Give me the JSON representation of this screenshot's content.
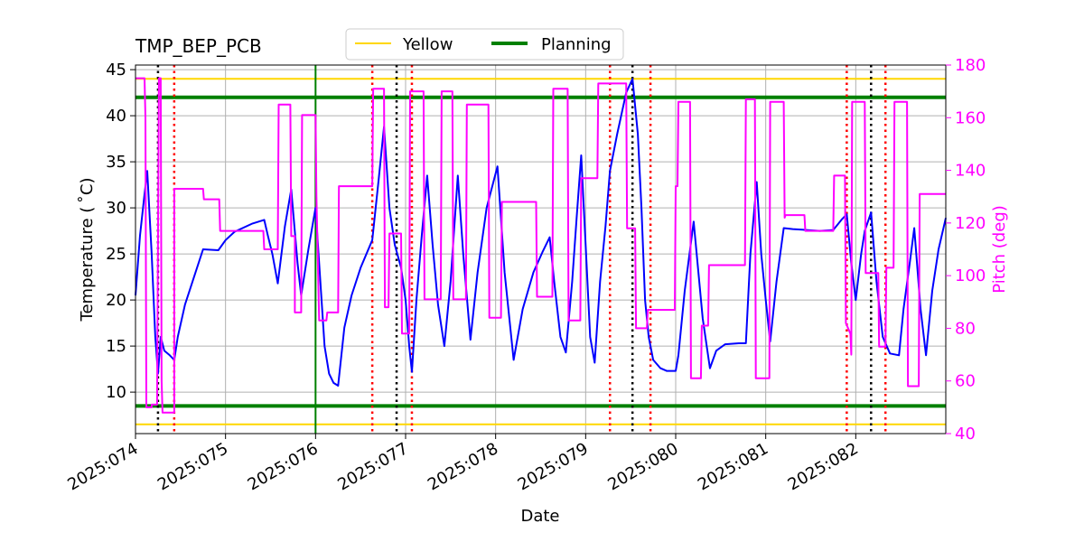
{
  "chart_data": {
    "type": "line",
    "title": "TMP_BEP_PCB",
    "xlabel": "Date",
    "ylabel": "Temperature ($^\\circ$C)",
    "ylabel_display": "Temperature ( ˚C)",
    "y2label": "Pitch (deg)",
    "xlim": [
      74.0,
      83.0
    ],
    "ylim": [
      5.5,
      45.5
    ],
    "y2lim": [
      40,
      180
    ],
    "grid": true,
    "legend_placement": "top-center",
    "x_ticks": [
      {
        "value": 74,
        "label": "2025:074"
      },
      {
        "value": 75,
        "label": "2025:075"
      },
      {
        "value": 76,
        "label": "2025:076"
      },
      {
        "value": 77,
        "label": "2025:077"
      },
      {
        "value": 78,
        "label": "2025:078"
      },
      {
        "value": 79,
        "label": "2025:079"
      },
      {
        "value": 80,
        "label": "2025:080"
      },
      {
        "value": 81,
        "label": "2025:081"
      },
      {
        "value": 82,
        "label": "2025:082"
      }
    ],
    "y_ticks": [
      10,
      15,
      20,
      25,
      30,
      35,
      40,
      45
    ],
    "y2_ticks": [
      40,
      60,
      80,
      100,
      120,
      140,
      160,
      180
    ],
    "legend": [
      {
        "name": "Yellow",
        "color": "#ffd700"
      },
      {
        "name": "Planning",
        "color": "#008000"
      }
    ],
    "limit_lines": [
      {
        "name": "Yellow",
        "values": [
          44.0,
          6.5
        ],
        "color": "#ffd700"
      },
      {
        "name": "Planning",
        "values": [
          42.0,
          8.5
        ],
        "color": "#008000"
      }
    ],
    "now_line": {
      "x": 76.0,
      "color": "#008000"
    },
    "red_dotted_x": [
      74.43,
      76.63,
      77.07,
      79.27,
      79.72,
      81.9,
      82.33
    ],
    "black_dotted_x": [
      74.25,
      76.9,
      79.52,
      82.17
    ],
    "series": [
      {
        "name": "Temperature",
        "axis": "left",
        "color": "#0000ff",
        "points": [
          [
            74.0,
            20.5
          ],
          [
            74.05,
            27.0
          ],
          [
            74.1,
            31.5
          ],
          [
            74.13,
            34.0
          ],
          [
            74.18,
            25.0
          ],
          [
            74.22,
            16.0
          ],
          [
            74.25,
            12.0
          ],
          [
            74.28,
            16.0
          ],
          [
            74.32,
            14.5
          ],
          [
            74.38,
            14.0
          ],
          [
            74.43,
            13.5
          ],
          [
            74.47,
            16.0
          ],
          [
            74.55,
            19.5
          ],
          [
            74.65,
            22.5
          ],
          [
            74.75,
            25.5
          ],
          [
            74.92,
            25.4
          ],
          [
            75.0,
            26.5
          ],
          [
            75.1,
            27.4
          ],
          [
            75.3,
            28.3
          ],
          [
            75.43,
            28.7
          ],
          [
            75.47,
            27.0
          ],
          [
            75.52,
            25.0
          ],
          [
            75.58,
            21.8
          ],
          [
            75.66,
            28.0
          ],
          [
            75.73,
            32.0
          ],
          [
            75.8,
            24.0
          ],
          [
            75.84,
            20.5
          ],
          [
            75.92,
            25.5
          ],
          [
            76.0,
            30.0
          ],
          [
            76.06,
            21.0
          ],
          [
            76.1,
            15.0
          ],
          [
            76.15,
            12.0
          ],
          [
            76.2,
            11.0
          ],
          [
            76.25,
            10.7
          ],
          [
            76.32,
            17.0
          ],
          [
            76.4,
            20.5
          ],
          [
            76.5,
            23.5
          ],
          [
            76.63,
            26.5
          ],
          [
            76.7,
            33.0
          ],
          [
            76.76,
            38.8
          ],
          [
            76.82,
            30.0
          ],
          [
            76.88,
            26.0
          ],
          [
            76.95,
            23.5
          ],
          [
            77.0,
            20.0
          ],
          [
            77.04,
            15.0
          ],
          [
            77.07,
            12.2
          ],
          [
            77.12,
            20.0
          ],
          [
            77.18,
            27.0
          ],
          [
            77.24,
            33.5
          ],
          [
            77.3,
            26.0
          ],
          [
            77.36,
            19.5
          ],
          [
            77.43,
            15.0
          ],
          [
            77.5,
            22.0
          ],
          [
            77.58,
            33.5
          ],
          [
            77.64,
            25.0
          ],
          [
            77.72,
            15.7
          ],
          [
            77.8,
            23.0
          ],
          [
            77.9,
            30.0
          ],
          [
            78.02,
            34.5
          ],
          [
            78.1,
            23.0
          ],
          [
            78.2,
            13.5
          ],
          [
            78.3,
            19.0
          ],
          [
            78.42,
            23.0
          ],
          [
            78.52,
            25.2
          ],
          [
            78.6,
            26.8
          ],
          [
            78.65,
            22.0
          ],
          [
            78.72,
            16.0
          ],
          [
            78.78,
            14.3
          ],
          [
            78.85,
            22.0
          ],
          [
            78.9,
            29.0
          ],
          [
            78.95,
            35.7
          ],
          [
            79.0,
            26.0
          ],
          [
            79.05,
            16.0
          ],
          [
            79.1,
            13.2
          ],
          [
            79.16,
            22.0
          ],
          [
            79.22,
            28.0
          ],
          [
            79.27,
            34.0
          ],
          [
            79.35,
            38.0
          ],
          [
            79.45,
            42.5
          ],
          [
            79.52,
            44.0
          ],
          [
            79.58,
            38.0
          ],
          [
            79.62,
            30.0
          ],
          [
            79.66,
            20.0
          ],
          [
            79.7,
            16.0
          ],
          [
            79.75,
            13.5
          ],
          [
            79.83,
            12.6
          ],
          [
            79.9,
            12.3
          ],
          [
            80.0,
            12.3
          ],
          [
            80.03,
            14.0
          ],
          [
            80.1,
            21.0
          ],
          [
            80.2,
            28.5
          ],
          [
            80.3,
            18.0
          ],
          [
            80.38,
            12.6
          ],
          [
            80.45,
            14.5
          ],
          [
            80.55,
            15.2
          ],
          [
            80.7,
            15.3
          ],
          [
            80.78,
            15.3
          ],
          [
            80.83,
            25.0
          ],
          [
            80.9,
            32.8
          ],
          [
            80.95,
            25.0
          ],
          [
            81.0,
            20.0
          ],
          [
            81.05,
            15.5
          ],
          [
            81.12,
            22.0
          ],
          [
            81.2,
            27.8
          ],
          [
            81.3,
            27.7
          ],
          [
            81.45,
            27.6
          ],
          [
            81.6,
            27.5
          ],
          [
            81.75,
            27.6
          ],
          [
            81.85,
            28.8
          ],
          [
            81.9,
            29.3
          ],
          [
            81.95,
            24.0
          ],
          [
            82.0,
            20.0
          ],
          [
            82.06,
            25.0
          ],
          [
            82.1,
            27.5
          ],
          [
            82.17,
            29.5
          ],
          [
            82.23,
            22.0
          ],
          [
            82.3,
            16.0
          ],
          [
            82.38,
            14.2
          ],
          [
            82.48,
            14.0
          ],
          [
            82.53,
            19.0
          ],
          [
            82.6,
            24.0
          ],
          [
            82.65,
            27.8
          ],
          [
            82.72,
            19.0
          ],
          [
            82.78,
            14.0
          ],
          [
            82.85,
            21.0
          ],
          [
            82.92,
            25.5
          ],
          [
            83.0,
            28.9
          ]
        ]
      },
      {
        "name": "Pitch",
        "axis": "right",
        "color": "#ff00ff",
        "points": [
          [
            74.0,
            175
          ],
          [
            74.1,
            175
          ],
          [
            74.11,
            160
          ],
          [
            74.12,
            50
          ],
          [
            74.18,
            50
          ],
          [
            74.18,
            51
          ],
          [
            74.24,
            51
          ],
          [
            74.26,
            175
          ],
          [
            74.28,
            175
          ],
          [
            74.29,
            60
          ],
          [
            74.3,
            48
          ],
          [
            74.43,
            48
          ],
          [
            74.43,
            133
          ],
          [
            74.75,
            133
          ],
          [
            74.76,
            129
          ],
          [
            74.93,
            129
          ],
          [
            74.94,
            117
          ],
          [
            75.42,
            117
          ],
          [
            75.43,
            110
          ],
          [
            75.58,
            110
          ],
          [
            75.59,
            165
          ],
          [
            75.72,
            165
          ],
          [
            75.73,
            115
          ],
          [
            75.77,
            115
          ],
          [
            75.77,
            86
          ],
          [
            75.84,
            86
          ],
          [
            75.85,
            161
          ],
          [
            76.0,
            161
          ],
          [
            76.01,
            130
          ],
          [
            76.04,
            83
          ],
          [
            76.12,
            83
          ],
          [
            76.13,
            86
          ],
          [
            76.25,
            86
          ],
          [
            76.26,
            134
          ],
          [
            76.63,
            134
          ],
          [
            76.64,
            171
          ],
          [
            76.76,
            171
          ],
          [
            76.77,
            88
          ],
          [
            76.81,
            88
          ],
          [
            76.82,
            116
          ],
          [
            76.95,
            116
          ],
          [
            76.96,
            78
          ],
          [
            77.04,
            78
          ],
          [
            77.05,
            170
          ],
          [
            77.2,
            170
          ],
          [
            77.21,
            91
          ],
          [
            77.39,
            91
          ],
          [
            77.4,
            170
          ],
          [
            77.52,
            170
          ],
          [
            77.53,
            91
          ],
          [
            77.67,
            91
          ],
          [
            77.68,
            165
          ],
          [
            77.92,
            165
          ],
          [
            77.93,
            84
          ],
          [
            78.06,
            84
          ],
          [
            78.07,
            128
          ],
          [
            78.45,
            128
          ],
          [
            78.46,
            92
          ],
          [
            78.63,
            92
          ],
          [
            78.64,
            171
          ],
          [
            78.8,
            171
          ],
          [
            78.81,
            83
          ],
          [
            78.94,
            83
          ],
          [
            78.95,
            137
          ],
          [
            79.13,
            137
          ],
          [
            79.14,
            173
          ],
          [
            79.45,
            173
          ],
          [
            79.46,
            118
          ],
          [
            79.55,
            118
          ],
          [
            79.56,
            80
          ],
          [
            79.68,
            80
          ],
          [
            79.69,
            87
          ],
          [
            79.99,
            87
          ],
          [
            80.0,
            134
          ],
          [
            80.02,
            134
          ],
          [
            80.03,
            166
          ],
          [
            80.16,
            166
          ],
          [
            80.17,
            61
          ],
          [
            80.28,
            61
          ],
          [
            80.29,
            81
          ],
          [
            80.36,
            81
          ],
          [
            80.37,
            104
          ],
          [
            80.77,
            104
          ],
          [
            80.78,
            167
          ],
          [
            80.88,
            167
          ],
          [
            80.89,
            61
          ],
          [
            81.04,
            61
          ],
          [
            81.05,
            166
          ],
          [
            81.2,
            166
          ],
          [
            81.21,
            122
          ],
          [
            81.22,
            123
          ],
          [
            81.43,
            123
          ],
          [
            81.44,
            117
          ],
          [
            81.75,
            117
          ],
          [
            81.76,
            138
          ],
          [
            81.88,
            138
          ],
          [
            81.89,
            82
          ],
          [
            81.94,
            78
          ],
          [
            81.95,
            70
          ],
          [
            81.96,
            166
          ],
          [
            82.1,
            166
          ],
          [
            82.11,
            101
          ],
          [
            82.25,
            101
          ],
          [
            82.26,
            73
          ],
          [
            82.33,
            73
          ],
          [
            82.34,
            103
          ],
          [
            82.42,
            103
          ],
          [
            82.43,
            166
          ],
          [
            82.57,
            166
          ],
          [
            82.58,
            58
          ],
          [
            82.7,
            58
          ],
          [
            82.71,
            131
          ],
          [
            83.0,
            131
          ]
        ]
      }
    ]
  }
}
